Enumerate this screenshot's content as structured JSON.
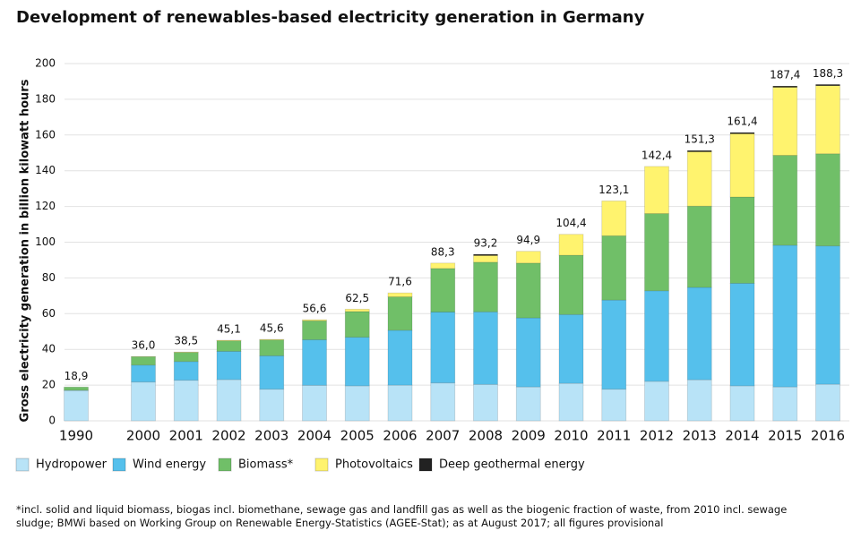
{
  "chart_data": {
    "type": "bar",
    "stacked": true,
    "title": "Development of renewables-based electricity generation in Germany",
    "y_label": "Gross electricity generation in billion kilowatt hours",
    "categories": [
      "1990",
      "2000",
      "2001",
      "2002",
      "2003",
      "2004",
      "2005",
      "2006",
      "2007",
      "2008",
      "2009",
      "2010",
      "2011",
      "2012",
      "2013",
      "2014",
      "2015",
      "2016"
    ],
    "series": [
      {
        "name": "Hydropower",
        "color": "#b8e3f7",
        "values": [
          17.0,
          21.7,
          22.7,
          23.1,
          17.7,
          19.9,
          19.6,
          20.0,
          21.2,
          20.4,
          19.0,
          21.0,
          17.7,
          22.1,
          23.0,
          19.6,
          19.0,
          20.5
        ]
      },
      {
        "name": "Wind energy",
        "color": "#55c0ec",
        "values": [
          0.1,
          9.5,
          10.5,
          15.8,
          18.7,
          25.5,
          27.2,
          30.7,
          39.7,
          40.6,
          38.6,
          38.5,
          49.9,
          50.7,
          51.7,
          57.4,
          79.3,
          77.4
        ]
      },
      {
        "name": "Biomass*",
        "color": "#70bf68",
        "values": [
          1.8,
          4.7,
          5.1,
          5.9,
          8.9,
          10.6,
          14.4,
          18.7,
          24.4,
          27.8,
          30.7,
          33.2,
          36.0,
          43.2,
          45.5,
          48.3,
          50.3,
          51.6
        ]
      },
      {
        "name": "Photovoltaics",
        "color": "#fff36e",
        "values": [
          0,
          0.1,
          0.2,
          0.3,
          0.3,
          0.6,
          1.3,
          2.2,
          3.0,
          4.38,
          6.6,
          11.7,
          19.5,
          26.4,
          31.0,
          36.0,
          38.7,
          38.6
        ]
      },
      {
        "name": "Deep geothermal energy",
        "color": "#222222",
        "values": [
          0,
          0,
          0,
          0,
          0,
          0,
          0,
          0,
          0,
          0.02,
          0,
          0,
          0,
          0,
          0.1,
          0.1,
          0.1,
          0.2
        ]
      }
    ],
    "totals": [
      18.9,
      36.0,
      38.5,
      45.1,
      45.6,
      56.6,
      62.5,
      71.6,
      88.3,
      93.2,
      94.9,
      104.4,
      123.1,
      142.4,
      151.3,
      161.4,
      187.4,
      188.3
    ],
    "value_labels": [
      "18,9",
      "36,0",
      "38,5",
      "45,1",
      "45,6",
      "56,6",
      "62,5",
      "71,6",
      "88,3",
      "93,2",
      "94,9",
      "104,4",
      "123,1",
      "142,4",
      "151,3",
      "161,4",
      "187,4",
      "188,3"
    ],
    "ylim": [
      0,
      200
    ],
    "yticks": [
      0,
      20,
      40,
      60,
      80,
      100,
      120,
      140,
      160,
      180,
      200
    ],
    "grid": true,
    "footnote": "*incl. solid and liquid biomass, biogas incl. biomethane, sewage gas and landfill gas as well as the biogenic fraction of waste, from 2010 incl. sewage sludge; BMWi based on Working Group on Renewable Energy-Statistics (AGEE-Stat); as at August 2017; all figures provisional"
  }
}
